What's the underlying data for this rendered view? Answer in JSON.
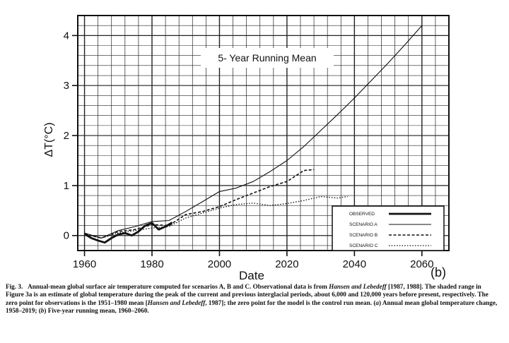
{
  "chart_data": {
    "type": "line",
    "annotation": "5- Year Running Mean",
    "panel_label": "(b)",
    "xlabel": "Date",
    "ylabel": "ΔT(°C)",
    "xlim": [
      1958,
      2068
    ],
    "ylim": [
      -0.3,
      4.4
    ],
    "x_ticks": [
      1960,
      1980,
      2000,
      2020,
      2040,
      2060
    ],
    "y_ticks": [
      0,
      1,
      2,
      3,
      4
    ],
    "grid": true,
    "legend_position": "bottom-right",
    "series": [
      {
        "name": "OBSERVED",
        "style": "solid-thick",
        "x": [
          1960,
          1962,
          1964,
          1966,
          1968,
          1970,
          1972,
          1974,
          1976,
          1978,
          1980,
          1982,
          1984,
          1986
        ],
        "y": [
          0.03,
          -0.05,
          -0.1,
          -0.14,
          -0.05,
          0.02,
          0.05,
          0.0,
          0.08,
          0.2,
          0.25,
          0.12,
          0.18,
          0.26
        ]
      },
      {
        "name": "SCENARIO A",
        "style": "solid-thin",
        "x": [
          1960,
          1965,
          1970,
          1975,
          1980,
          1985,
          1990,
          1995,
          2000,
          2005,
          2010,
          2015,
          2020,
          2025,
          2030,
          2035,
          2040,
          2045,
          2050,
          2055,
          2060
        ],
        "y": [
          0.05,
          -0.05,
          0.1,
          0.18,
          0.28,
          0.3,
          0.48,
          0.68,
          0.88,
          0.95,
          1.08,
          1.28,
          1.5,
          1.78,
          2.1,
          2.42,
          2.75,
          3.1,
          3.45,
          3.82,
          4.2
        ]
      },
      {
        "name": "SCENARIO B",
        "style": "dashed",
        "x": [
          1960,
          1965,
          1970,
          1975,
          1980,
          1985,
          1990,
          1995,
          2000,
          2005,
          2010,
          2015,
          2020,
          2025,
          2028
        ],
        "y": [
          0.03,
          -0.05,
          0.08,
          0.12,
          0.22,
          0.2,
          0.42,
          0.48,
          0.58,
          0.72,
          0.85,
          0.98,
          1.08,
          1.3,
          1.32
        ]
      },
      {
        "name": "SCENARIO C",
        "style": "dotted",
        "x": [
          1960,
          1965,
          1970,
          1975,
          1980,
          1985,
          1990,
          1995,
          2000,
          2005,
          2010,
          2015,
          2020,
          2025,
          2030,
          2035,
          2038
        ],
        "y": [
          0.03,
          -0.05,
          0.05,
          0.1,
          0.15,
          0.18,
          0.35,
          0.45,
          0.55,
          0.62,
          0.65,
          0.6,
          0.64,
          0.7,
          0.78,
          0.75,
          0.78
        ]
      }
    ]
  },
  "caption": {
    "figure_label": "Fig. 3.",
    "text_1": "Annual-mean global surface air temperature computed for scenarios A, B and C. Observational data is from",
    "ref_1": "Hansen and Lebedeff",
    "text_2": "[1987, 1988]. The shaded range in Figure 3a is an estimate of global temperature during the peak of the current and previous interglacial periods, about 6,000 and 120,000 years before present, respectively. The zero point for observations is the 1951–1980 mean [",
    "ref_2": "Hansen and Lebedeff",
    "text_3": ", 1987]; the zero point for the model is the control run mean. (",
    "panel_a": "a",
    "text_4": ") Annual mean global temperature change, 1958–2019; (",
    "panel_b": "b",
    "text_5": ") Five-year running mean, 1960–2060."
  }
}
